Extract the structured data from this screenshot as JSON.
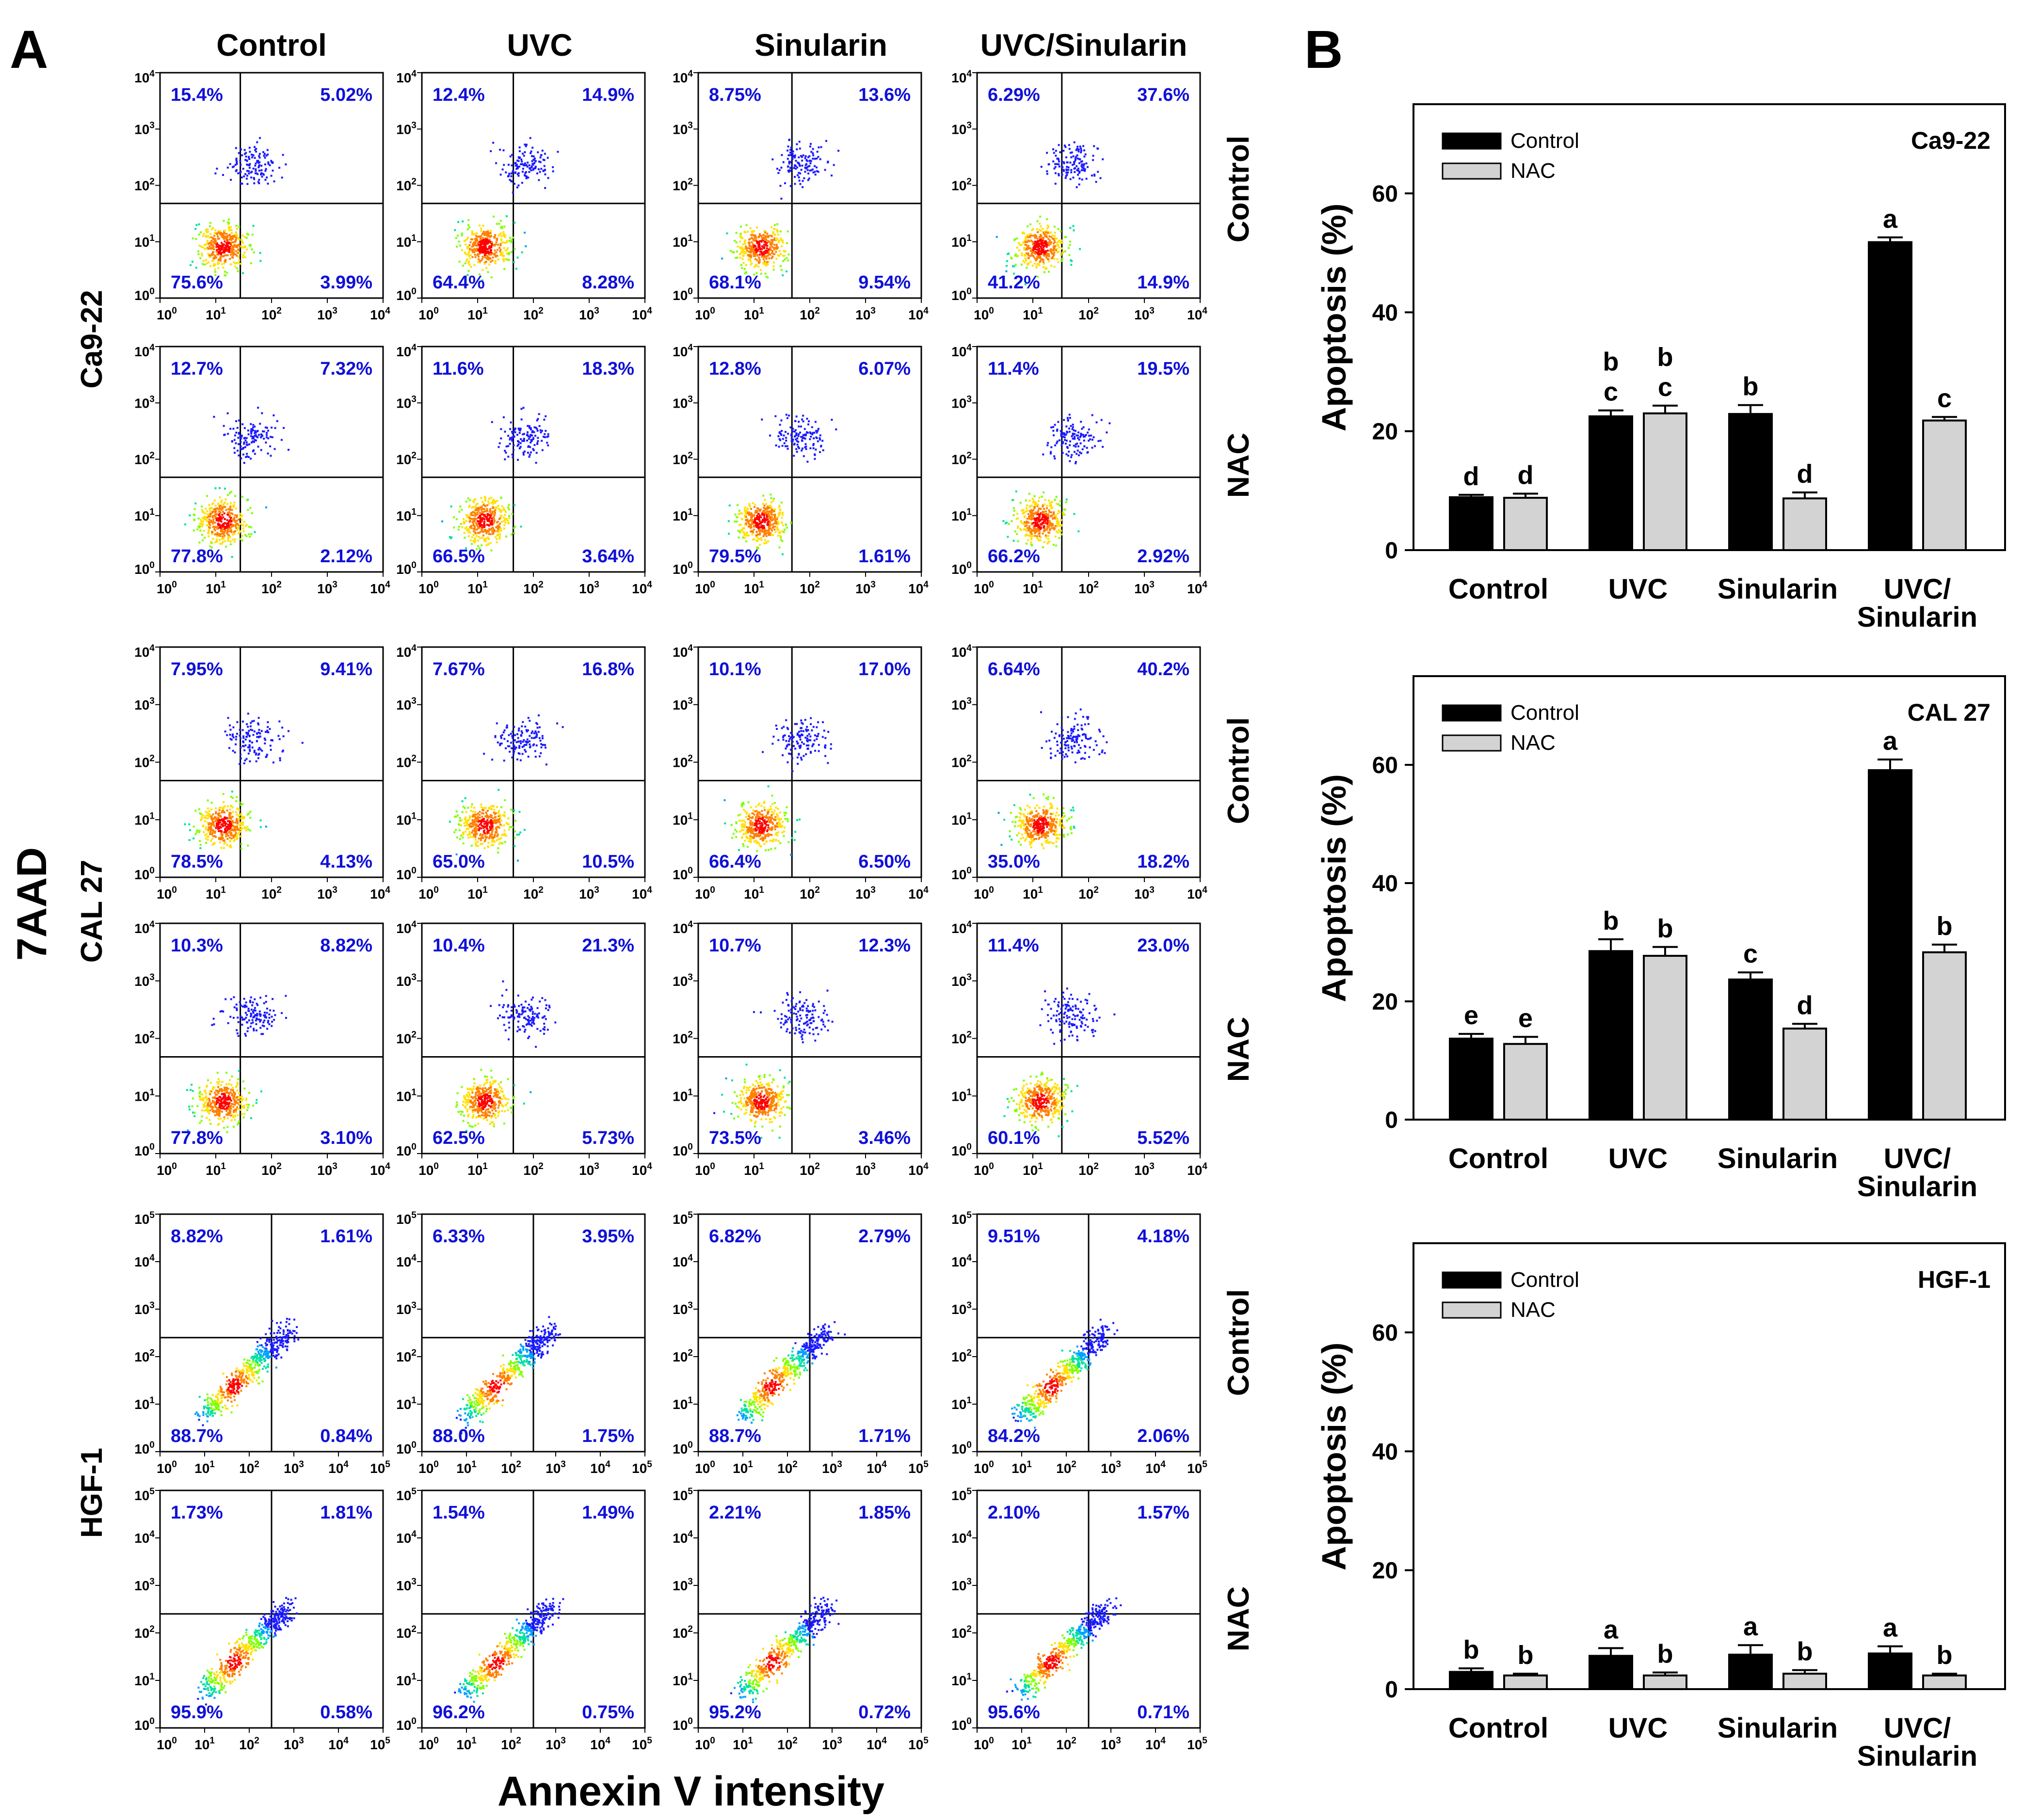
{
  "panel_a": {
    "label": "A",
    "col_titles": [
      "Control",
      "UVC",
      "Sinularin",
      "UVC/Sinularin"
    ],
    "y_axis_label": "7AAD",
    "x_axis_label": "Annexin V intensity",
    "cell_lines": [
      "Ca9-22",
      "CAL 27",
      "HGF-1"
    ],
    "row_labels": [
      "Control",
      "NAC"
    ],
    "groups": [
      {
        "cell": "Ca9-22",
        "axis_max_exp": 4,
        "rows": [
          {
            "label": "Control",
            "plots": [
              {
                "ul": "15.4%",
                "ur": "5.02%",
                "ll": "75.6%",
                "lr": "3.99%"
              },
              {
                "ul": "12.4%",
                "ur": "14.9%",
                "ll": "64.4%",
                "lr": "8.28%"
              },
              {
                "ul": "8.75%",
                "ur": "13.6%",
                "ll": "68.1%",
                "lr": "9.54%"
              },
              {
                "ul": "6.29%",
                "ur": "37.6%",
                "ll": "41.2%",
                "lr": "14.9%"
              }
            ]
          },
          {
            "label": "NAC",
            "plots": [
              {
                "ul": "12.7%",
                "ur": "7.32%",
                "ll": "77.8%",
                "lr": "2.12%"
              },
              {
                "ul": "11.6%",
                "ur": "18.3%",
                "ll": "66.5%",
                "lr": "3.64%"
              },
              {
                "ul": "12.8%",
                "ur": "6.07%",
                "ll": "79.5%",
                "lr": "1.61%"
              },
              {
                "ul": "11.4%",
                "ur": "19.5%",
                "ll": "66.2%",
                "lr": "2.92%"
              }
            ]
          }
        ]
      },
      {
        "cell": "CAL 27",
        "axis_max_exp": 4,
        "rows": [
          {
            "label": "Control",
            "plots": [
              {
                "ul": "7.95%",
                "ur": "9.41%",
                "ll": "78.5%",
                "lr": "4.13%"
              },
              {
                "ul": "7.67%",
                "ur": "16.8%",
                "ll": "65.0%",
                "lr": "10.5%"
              },
              {
                "ul": "10.1%",
                "ur": "17.0%",
                "ll": "66.4%",
                "lr": "6.50%"
              },
              {
                "ul": "6.64%",
                "ur": "40.2%",
                "ll": "35.0%",
                "lr": "18.2%"
              }
            ]
          },
          {
            "label": "NAC",
            "plots": [
              {
                "ul": "10.3%",
                "ur": "8.82%",
                "ll": "77.8%",
                "lr": "3.10%"
              },
              {
                "ul": "10.4%",
                "ur": "21.3%",
                "ll": "62.5%",
                "lr": "5.73%"
              },
              {
                "ul": "10.7%",
                "ur": "12.3%",
                "ll": "73.5%",
                "lr": "3.46%"
              },
              {
                "ul": "11.4%",
                "ur": "23.0%",
                "ll": "60.1%",
                "lr": "5.52%"
              }
            ]
          }
        ]
      },
      {
        "cell": "HGF-1",
        "axis_max_exp": 5,
        "rows": [
          {
            "label": "Control",
            "plots": [
              {
                "ul": "8.82%",
                "ur": "1.61%",
                "ll": "88.7%",
                "lr": "0.84%"
              },
              {
                "ul": "6.33%",
                "ur": "3.95%",
                "ll": "88.0%",
                "lr": "1.75%"
              },
              {
                "ul": "6.82%",
                "ur": "2.79%",
                "ll": "88.7%",
                "lr": "1.71%"
              },
              {
                "ul": "9.51%",
                "ur": "4.18%",
                "ll": "84.2%",
                "lr": "2.06%"
              }
            ]
          },
          {
            "label": "NAC",
            "plots": [
              {
                "ul": "1.73%",
                "ur": "1.81%",
                "ll": "95.9%",
                "lr": "0.58%"
              },
              {
                "ul": "1.54%",
                "ur": "1.49%",
                "ll": "96.2%",
                "lr": "0.75%"
              },
              {
                "ul": "2.21%",
                "ur": "1.85%",
                "ll": "95.2%",
                "lr": "0.72%"
              },
              {
                "ul": "2.10%",
                "ur": "1.57%",
                "ll": "95.6%",
                "lr": "0.71%"
              }
            ]
          }
        ]
      }
    ]
  },
  "panel_b": {
    "label": "B"
  },
  "colors": {
    "control_bar": "#000000",
    "nac_bar": "#d3d3d3",
    "quadrant_text": "#1010d8"
  },
  "chart_data": [
    {
      "type": "bar",
      "title": "Ca9-22",
      "ylabel": "Apoptosis (%)",
      "xlabel": "",
      "ylim": [
        0,
        75
      ],
      "yticks": [
        0,
        20,
        40,
        60
      ],
      "categories": [
        "Control",
        "UVC",
        "Sinularin",
        "UVC/ Sinularin"
      ],
      "series": [
        {
          "name": "Control",
          "values": [
            8.9,
            22.5,
            22.9,
            51.8
          ],
          "errors": [
            0.4,
            1.0,
            1.5,
            0.8
          ],
          "labels": [
            "d",
            "b c",
            "b",
            "a"
          ]
        },
        {
          "name": "NAC",
          "values": [
            8.8,
            23.0,
            8.7,
            21.8
          ],
          "errors": [
            0.7,
            1.3,
            1.0,
            0.6
          ],
          "labels": [
            "d",
            "b c",
            "d",
            "c"
          ]
        }
      ]
    },
    {
      "type": "bar",
      "title": "CAL 27",
      "ylabel": "Apoptosis (%)",
      "xlabel": "",
      "ylim": [
        0,
        75
      ],
      "yticks": [
        0,
        20,
        40,
        60
      ],
      "categories": [
        "Control",
        "UVC",
        "Sinularin",
        "UVC/ Sinularin"
      ],
      "series": [
        {
          "name": "Control",
          "values": [
            13.7,
            28.5,
            23.7,
            59.1
          ],
          "errors": [
            0.8,
            2.0,
            1.2,
            1.8
          ],
          "labels": [
            "e",
            "b",
            "c",
            "a"
          ]
        },
        {
          "name": "NAC",
          "values": [
            12.8,
            27.7,
            15.4,
            28.3
          ],
          "errors": [
            1.2,
            1.5,
            0.8,
            1.3
          ],
          "labels": [
            "e",
            "b",
            "d",
            "b"
          ]
        }
      ]
    },
    {
      "type": "bar",
      "title": "HGF-1",
      "ylabel": "Apoptosis (%)",
      "xlabel": "",
      "ylim": [
        0,
        75
      ],
      "yticks": [
        0,
        20,
        40,
        60
      ],
      "categories": [
        "Control",
        "UVC",
        "Sinularin",
        "UVC/ Sinularin"
      ],
      "series": [
        {
          "name": "Control",
          "values": [
            2.9,
            5.6,
            5.8,
            6.0
          ],
          "errors": [
            0.6,
            1.3,
            1.6,
            1.2
          ],
          "labels": [
            "b",
            "a",
            "a",
            "a"
          ]
        },
        {
          "name": "NAC",
          "values": [
            2.3,
            2.3,
            2.6,
            2.3
          ],
          "errors": [
            0.3,
            0.5,
            0.6,
            0.3
          ],
          "labels": [
            "b",
            "b",
            "b",
            "b"
          ]
        }
      ]
    }
  ]
}
